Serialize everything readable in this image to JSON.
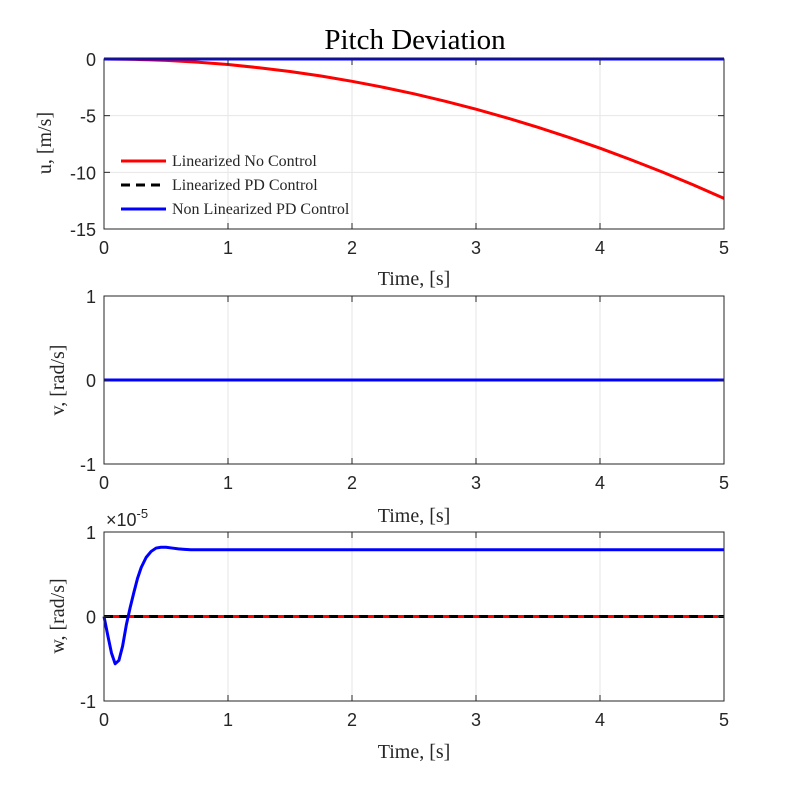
{
  "figure_title": "Pitch Deviation",
  "legend": [
    "Linearized No Control",
    "Linearized PD Control",
    "Non Linearized PD Control"
  ],
  "colors": {
    "linearized_no_control": "#ff0000",
    "linearized_pd_control": "#000000",
    "non_linearized_pd_control": "#0000ff",
    "grid": "#e6e6e6",
    "axis": "#262626"
  },
  "chart_data": [
    {
      "type": "line",
      "title": "Pitch Deviation",
      "xlabel": "Time, [s]",
      "ylabel": "u, [m/s]",
      "xlim": [
        0,
        5
      ],
      "ylim": [
        -15,
        0
      ],
      "xticks": [
        "0",
        "1",
        "2",
        "3",
        "4",
        "5"
      ],
      "yticks": [
        "-15",
        "-10",
        "-5",
        "0"
      ],
      "grid": true,
      "legend_position": "bottom-left",
      "series": [
        {
          "name": "Linearized No Control",
          "color": "#ff0000",
          "style": "solid",
          "x": [
            0,
            0.25,
            0.5,
            0.75,
            1,
            1.25,
            1.5,
            1.75,
            2,
            2.25,
            2.5,
            2.75,
            3,
            3.25,
            3.5,
            3.75,
            4,
            4.25,
            4.5,
            4.75,
            5
          ],
          "y": [
            0,
            -0.03,
            -0.12,
            -0.28,
            -0.49,
            -0.77,
            -1.1,
            -1.5,
            -1.97,
            -2.49,
            -3.07,
            -3.72,
            -4.43,
            -5.2,
            -6.03,
            -6.92,
            -7.87,
            -8.89,
            -9.96,
            -11.1,
            -12.3
          ]
        },
        {
          "name": "Linearized PD Control",
          "color": "#000000",
          "style": "dashed",
          "x": [
            0,
            5
          ],
          "y": [
            0,
            0
          ]
        },
        {
          "name": "Non Linearized PD Control",
          "color": "#0000ff",
          "style": "solid",
          "x": [
            0,
            5
          ],
          "y": [
            0,
            0
          ]
        }
      ]
    },
    {
      "type": "line",
      "xlabel": "Time, [s]",
      "ylabel": "v, [rad/s]",
      "xlim": [
        0,
        5
      ],
      "ylim": [
        -1,
        1
      ],
      "xticks": [
        "0",
        "1",
        "2",
        "3",
        "4",
        "5"
      ],
      "yticks": [
        "-1",
        "0",
        "1"
      ],
      "grid": true,
      "series": [
        {
          "name": "Linearized No Control",
          "color": "#ff0000",
          "style": "solid",
          "x": [
            0,
            5
          ],
          "y": [
            0,
            0
          ]
        },
        {
          "name": "Linearized PD Control",
          "color": "#000000",
          "style": "dashed",
          "x": [
            0,
            5
          ],
          "y": [
            0,
            0
          ]
        },
        {
          "name": "Non Linearized PD Control",
          "color": "#0000ff",
          "style": "solid",
          "x": [
            0,
            5
          ],
          "y": [
            0,
            0
          ]
        }
      ]
    },
    {
      "type": "line",
      "xlabel": "Time, [s]",
      "ylabel": "w, [rad/s]",
      "xlim": [
        0,
        5
      ],
      "ylim": [
        -1,
        1
      ],
      "y_exponent_label": "×10",
      "y_exponent_power": "-5",
      "xticks": [
        "0",
        "1",
        "2",
        "3",
        "4",
        "5"
      ],
      "yticks": [
        "-1",
        "0",
        "1"
      ],
      "grid": true,
      "series": [
        {
          "name": "Linearized No Control",
          "color": "#ff0000",
          "style": "solid",
          "x": [
            0,
            5
          ],
          "y": [
            0,
            0
          ]
        },
        {
          "name": "Linearized PD Control",
          "color": "#000000",
          "style": "dashed",
          "x": [
            0,
            5
          ],
          "y": [
            0,
            0
          ]
        },
        {
          "name": "Non Linearized PD Control",
          "color": "#0000ff",
          "style": "solid",
          "x": [
            0,
            0.03,
            0.06,
            0.09,
            0.12,
            0.15,
            0.18,
            0.21,
            0.24,
            0.27,
            0.3,
            0.34,
            0.38,
            0.42,
            0.46,
            0.5,
            0.55,
            0.6,
            0.65,
            0.7,
            0.8,
            0.9,
            1.0,
            1.5,
            2,
            3,
            4,
            5
          ],
          "y": [
            0,
            -0.22,
            -0.43,
            -0.56,
            -0.52,
            -0.35,
            -0.1,
            0.1,
            0.28,
            0.45,
            0.58,
            0.7,
            0.77,
            0.81,
            0.82,
            0.82,
            0.81,
            0.8,
            0.795,
            0.79,
            0.79,
            0.79,
            0.79,
            0.79,
            0.79,
            0.79,
            0.79,
            0.79
          ]
        }
      ]
    }
  ]
}
